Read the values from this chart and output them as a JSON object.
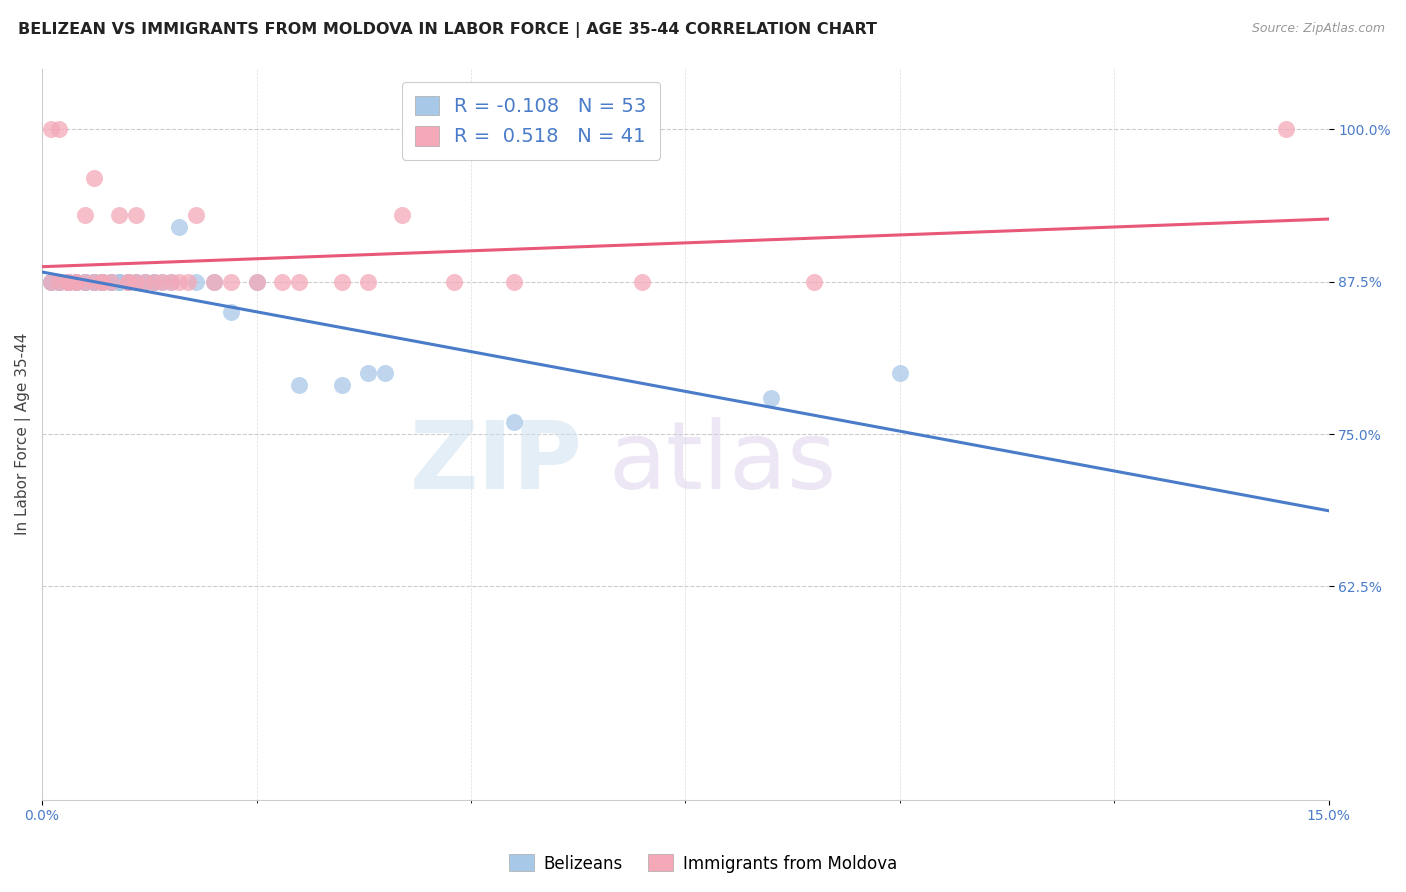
{
  "title": "BELIZEAN VS IMMIGRANTS FROM MOLDOVA IN LABOR FORCE | AGE 35-44 CORRELATION CHART",
  "source": "Source: ZipAtlas.com",
  "ylabel": "In Labor Force | Age 35-44",
  "xlim": [
    0.0,
    0.15
  ],
  "ylim": [
    0.45,
    1.05
  ],
  "yticks": [
    0.625,
    0.75,
    0.875,
    1.0
  ],
  "ytick_labels": [
    "62.5%",
    "75.0%",
    "87.5%",
    "100.0%"
  ],
  "blue_R": -0.108,
  "blue_N": 53,
  "pink_R": 0.518,
  "pink_N": 41,
  "blue_color": "#a8c8e8",
  "pink_color": "#f4a8b8",
  "blue_line_color": "#4a7cc9",
  "pink_line_color": "#e85878",
  "watermark_zip": "ZIP",
  "watermark_atlas": "atlas",
  "blue_scatter_x": [
    0.001,
    0.001,
    0.002,
    0.002,
    0.002,
    0.003,
    0.003,
    0.003,
    0.004,
    0.004,
    0.004,
    0.005,
    0.005,
    0.005,
    0.005,
    0.006,
    0.006,
    0.006,
    0.006,
    0.007,
    0.007,
    0.007,
    0.007,
    0.007,
    0.008,
    0.008,
    0.008,
    0.009,
    0.009,
    0.009,
    0.01,
    0.01,
    0.01,
    0.011,
    0.011,
    0.012,
    0.012,
    0.013,
    0.013,
    0.014,
    0.015,
    0.016,
    0.018,
    0.02,
    0.022,
    0.025,
    0.03,
    0.035,
    0.038,
    0.04,
    0.055,
    0.085,
    0.1
  ],
  "blue_scatter_y": [
    0.875,
    0.875,
    0.875,
    0.875,
    0.875,
    0.875,
    0.875,
    0.875,
    0.875,
    0.875,
    0.875,
    0.875,
    0.875,
    0.875,
    0.875,
    0.875,
    0.875,
    0.875,
    0.875,
    0.875,
    0.875,
    0.875,
    0.875,
    0.875,
    0.875,
    0.875,
    0.875,
    0.875,
    0.875,
    0.875,
    0.875,
    0.875,
    0.875,
    0.875,
    0.875,
    0.875,
    0.875,
    0.875,
    0.875,
    0.875,
    0.875,
    0.92,
    0.875,
    0.875,
    0.85,
    0.875,
    0.79,
    0.79,
    0.8,
    0.8,
    0.76,
    0.78,
    0.8
  ],
  "pink_scatter_x": [
    0.001,
    0.001,
    0.002,
    0.002,
    0.003,
    0.003,
    0.003,
    0.004,
    0.004,
    0.005,
    0.005,
    0.006,
    0.006,
    0.007,
    0.007,
    0.008,
    0.009,
    0.01,
    0.01,
    0.011,
    0.011,
    0.012,
    0.013,
    0.014,
    0.015,
    0.016,
    0.017,
    0.018,
    0.02,
    0.022,
    0.025,
    0.028,
    0.03,
    0.035,
    0.038,
    0.042,
    0.048,
    0.055,
    0.07,
    0.09,
    0.145
  ],
  "pink_scatter_y": [
    0.875,
    1.0,
    0.875,
    1.0,
    0.875,
    0.875,
    0.875,
    0.875,
    0.875,
    0.875,
    0.93,
    0.875,
    0.96,
    0.875,
    0.875,
    0.875,
    0.93,
    0.875,
    0.875,
    0.875,
    0.93,
    0.875,
    0.875,
    0.875,
    0.875,
    0.875,
    0.875,
    0.93,
    0.875,
    0.875,
    0.875,
    0.875,
    0.875,
    0.875,
    0.875,
    0.93,
    0.875,
    0.875,
    0.875,
    0.875,
    1.0
  ],
  "title_fontsize": 11.5,
  "axis_label_fontsize": 11,
  "tick_fontsize": 10,
  "legend_fontsize": 14
}
